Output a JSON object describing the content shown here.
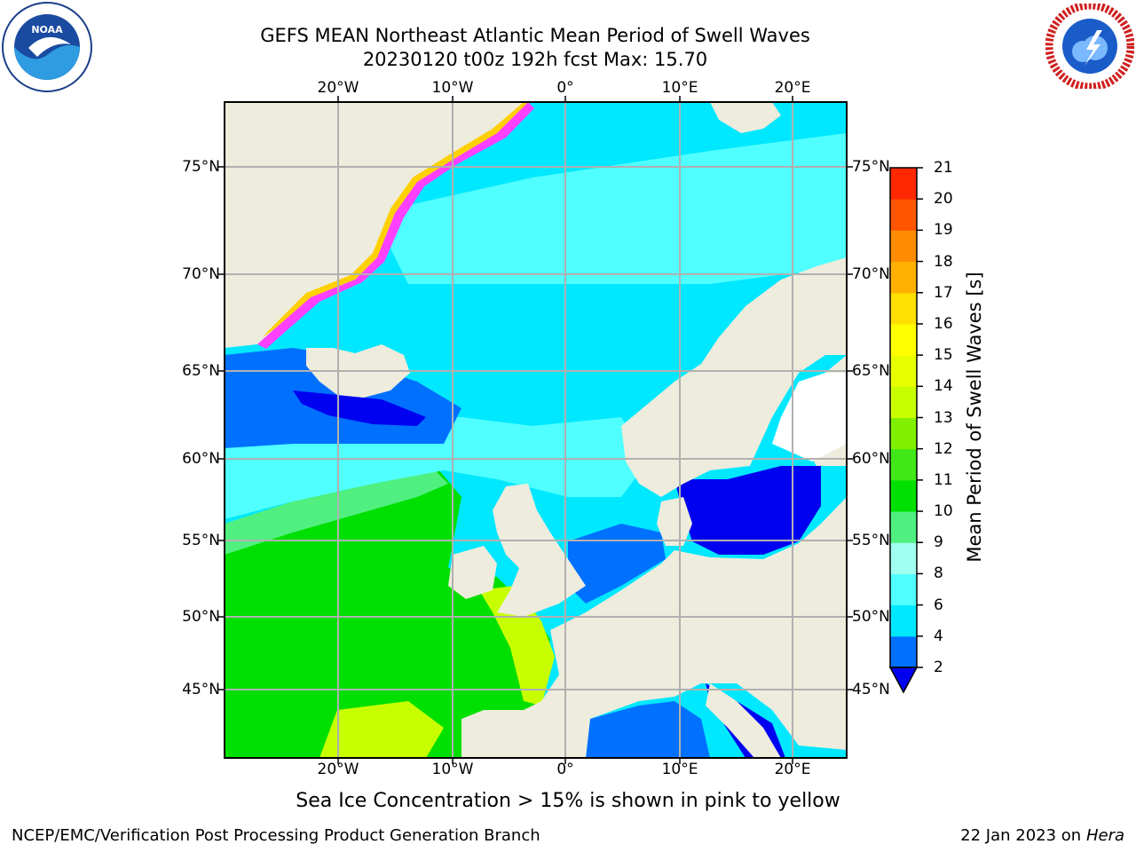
{
  "header": {
    "title_line1": "GEFS MEAN Northeast Atlantic Mean Period of Swell Waves",
    "title_line2": "20230120 t00z 192h fcst   Max: 15.70"
  },
  "logos": {
    "left": "noaa-logo",
    "right": "nws-logo"
  },
  "map": {
    "region": "Northeast Atlantic",
    "grid": true,
    "projection": "cylindrical",
    "lon_range": [
      -30,
      25
    ],
    "lat_range": [
      41,
      78
    ],
    "land_color": "#eeecdc",
    "ocean_colors": {
      "dark_blue": "#0000f0",
      "blue": "#0070ff",
      "cyan": "#00e8ff",
      "light_cyan": "#50ffff",
      "pale_cyan": "#a0fff0",
      "light_green": "#50f080",
      "green": "#00e000",
      "yellow_green": "#c8ff00",
      "yellow": "#ffff00"
    },
    "lon_labels": [
      "20°W",
      "10°W",
      "0°",
      "10°E",
      "20°E"
    ],
    "lat_labels_left": [
      "75°N",
      "70°N",
      "65°N",
      "60°N",
      "55°N",
      "50°N",
      "45°N"
    ],
    "lat_labels_right": [
      "75°N",
      "70°N",
      "65°N",
      "60°N",
      "55°N",
      "50°N",
      "45°N"
    ]
  },
  "colorbar": {
    "label": "Mean Period of Swell Waves [s]",
    "ticks": [
      "2",
      "4",
      "6",
      "8",
      "9",
      "10",
      "11",
      "12",
      "13",
      "14",
      "15",
      "16",
      "17",
      "18",
      "19",
      "20",
      "21"
    ],
    "colors": [
      "#0070ff",
      "#00e8ff",
      "#50ffff",
      "#a0fff0",
      "#50f080",
      "#00e000",
      "#40e818",
      "#80f000",
      "#c8ff00",
      "#e8ff00",
      "#ffff00",
      "#ffe000",
      "#ffb000",
      "#ff8c00",
      "#ff5500",
      "#ff2800"
    ],
    "extend_low_color": "#0000f0"
  },
  "caption": "Sea Ice Concentration > 15% is shown in pink to yellow",
  "footer": {
    "left": "NCEP/EMC/Verification Post Processing Product Generation Branch",
    "right_date": "22 Jan 2023 on",
    "right_host": "Hera"
  }
}
